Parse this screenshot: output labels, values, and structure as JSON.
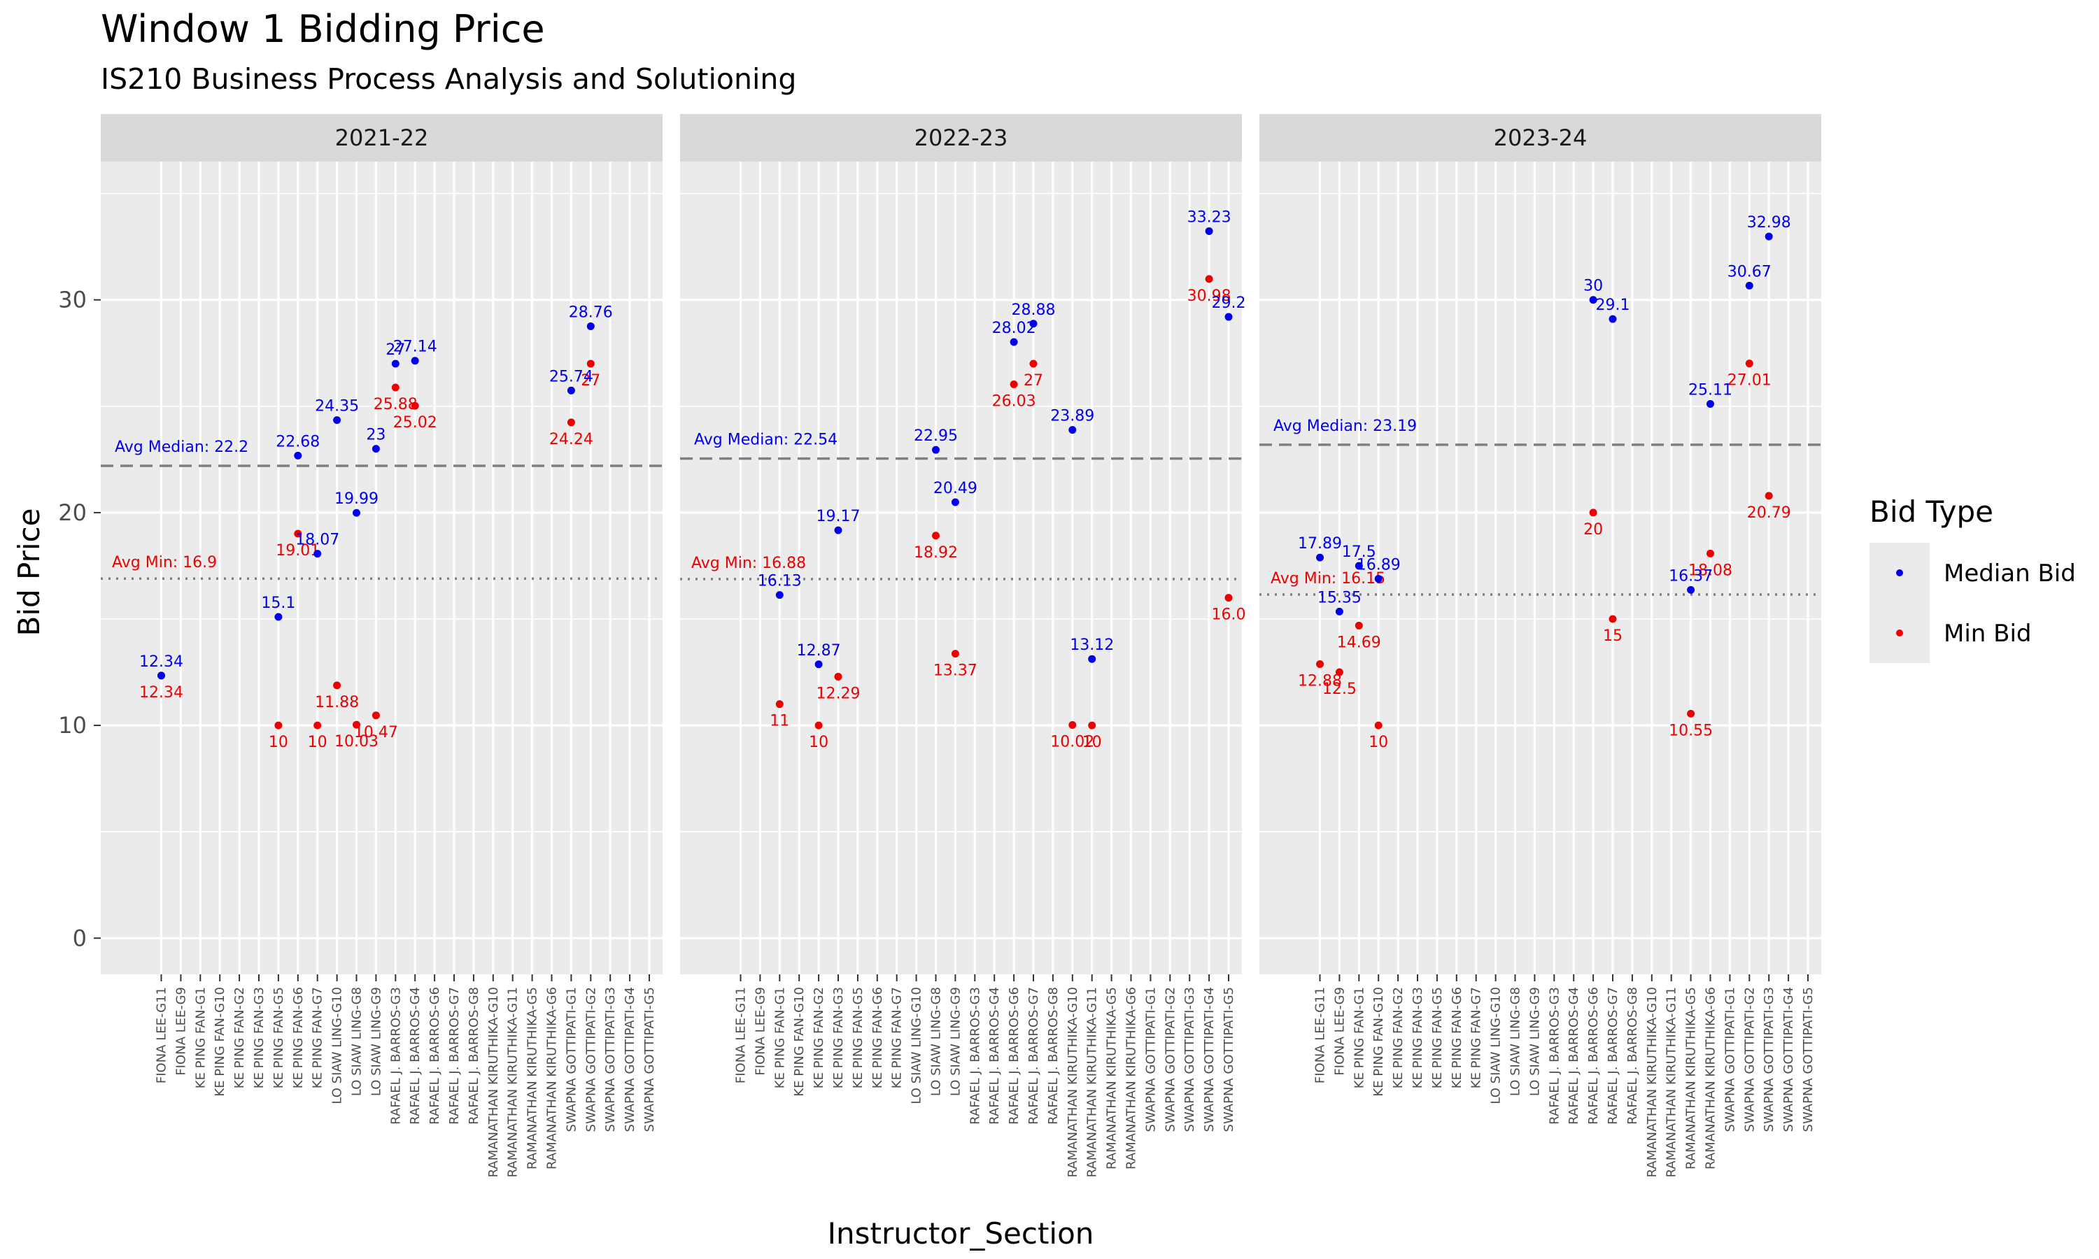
{
  "chart_data": {
    "type": "scatter",
    "title": "Window 1 Bidding Price",
    "subtitle": "IS210 Business Process Analysis and Solutioning",
    "xlabel": "Instructor_Section",
    "ylabel": "Bid Price",
    "ylim": [
      -1.7,
      36.5
    ],
    "yticks": [
      0,
      10,
      20,
      30
    ],
    "grid": true,
    "categories": [
      "FIONA LEE-G11",
      "FIONA LEE-G9",
      "KE PING FAN-G1",
      "KE PING FAN-G10",
      "KE PING FAN-G2",
      "KE PING FAN-G3",
      "KE PING FAN-G5",
      "KE PING FAN-G6",
      "KE PING FAN-G7",
      "LO SIAW LING-G10",
      "LO SIAW LING-G8",
      "LO SIAW LING-G9",
      "RAFAEL J. BARROS-G3",
      "RAFAEL J. BARROS-G4",
      "RAFAEL J. BARROS-G6",
      "RAFAEL J. BARROS-G7",
      "RAFAEL J. BARROS-G8",
      "RAMANATHAN KIRUTHIKA-G10",
      "RAMANATHAN KIRUTHIKA-G11",
      "RAMANATHAN KIRUTHIKA-G5",
      "RAMANATHAN KIRUTHIKA-G6",
      "SWAPNA GOTTIPATI-G1",
      "SWAPNA GOTTIPATI-G2",
      "SWAPNA GOTTIPATI-G3",
      "SWAPNA GOTTIPATI-G4",
      "SWAPNA GOTTIPATI-G5"
    ],
    "legend": {
      "title": "Bid Type",
      "position": "right",
      "entries": [
        {
          "name": "Median Bid",
          "color": "#0000ee"
        },
        {
          "name": "Min Bid",
          "color": "#ee0000"
        }
      ]
    },
    "colors": {
      "median": "#0000ee",
      "min": "#ee0000"
    },
    "panels": [
      {
        "name": "2021-22",
        "avg_median": {
          "value": 22.2,
          "label": "Avg Median: 22.2"
        },
        "avg_min": {
          "value": 16.9,
          "label": "Avg Min: 16.9"
        },
        "median": [
          {
            "x": "FIONA LEE-G11",
            "y": 12.34,
            "label": "12.34"
          },
          {
            "x": "KE PING FAN-G5",
            "y": 15.1,
            "label": "15.1"
          },
          {
            "x": "KE PING FAN-G6",
            "y": 22.68,
            "label": "22.68"
          },
          {
            "x": "KE PING FAN-G7",
            "y": 18.07,
            "label": "18.07"
          },
          {
            "x": "LO SIAW LING-G10",
            "y": 24.35,
            "label": "24.35"
          },
          {
            "x": "LO SIAW LING-G8",
            "y": 19.99,
            "label": "19.99"
          },
          {
            "x": "LO SIAW LING-G9",
            "y": 23.0,
            "label": "23"
          },
          {
            "x": "RAFAEL J. BARROS-G3",
            "y": 27.0,
            "label": "27"
          },
          {
            "x": "RAFAEL J. BARROS-G4",
            "y": 27.14,
            "label": "27.14"
          },
          {
            "x": "SWAPNA GOTTIPATI-G1",
            "y": 25.74,
            "label": "25.74"
          },
          {
            "x": "SWAPNA GOTTIPATI-G2",
            "y": 28.76,
            "label": "28.76"
          }
        ],
        "min": [
          {
            "x": "FIONA LEE-G11",
            "y": 12.34,
            "label": "12.34"
          },
          {
            "x": "KE PING FAN-G5",
            "y": 10.0,
            "label": "10"
          },
          {
            "x": "KE PING FAN-G6",
            "y": 19.01,
            "label": "19.01"
          },
          {
            "x": "KE PING FAN-G7",
            "y": 10.0,
            "label": "10"
          },
          {
            "x": "LO SIAW LING-G10",
            "y": 11.88,
            "label": "11.88"
          },
          {
            "x": "LO SIAW LING-G8",
            "y": 10.03,
            "label": "10.03"
          },
          {
            "x": "LO SIAW LING-G9",
            "y": 10.47,
            "label": "10.47"
          },
          {
            "x": "RAFAEL J. BARROS-G3",
            "y": 25.88,
            "label": "25.88"
          },
          {
            "x": "RAFAEL J. BARROS-G4",
            "y": 25.02,
            "label": "25.02"
          },
          {
            "x": "SWAPNA GOTTIPATI-G1",
            "y": 24.24,
            "label": "24.24"
          },
          {
            "x": "SWAPNA GOTTIPATI-G2",
            "y": 27.0,
            "label": "27"
          }
        ]
      },
      {
        "name": "2022-23",
        "avg_median": {
          "value": 22.54,
          "label": "Avg Median: 22.54"
        },
        "avg_min": {
          "value": 16.88,
          "label": "Avg Min: 16.88"
        },
        "median": [
          {
            "x": "KE PING FAN-G1",
            "y": 16.13,
            "label": "16.13"
          },
          {
            "x": "KE PING FAN-G2",
            "y": 12.87,
            "label": "12.87"
          },
          {
            "x": "KE PING FAN-G3",
            "y": 19.17,
            "label": "19.17"
          },
          {
            "x": "LO SIAW LING-G8",
            "y": 22.95,
            "label": "22.95"
          },
          {
            "x": "LO SIAW LING-G9",
            "y": 20.49,
            "label": "20.49"
          },
          {
            "x": "RAFAEL J. BARROS-G6",
            "y": 28.02,
            "label": "28.02"
          },
          {
            "x": "RAFAEL J. BARROS-G7",
            "y": 28.88,
            "label": "28.88"
          },
          {
            "x": "RAMANATHAN KIRUTHIKA-G10",
            "y": 23.89,
            "label": "23.89"
          },
          {
            "x": "RAMANATHAN KIRUTHIKA-G11",
            "y": 13.12,
            "label": "13.12"
          },
          {
            "x": "SWAPNA GOTTIPATI-G4",
            "y": 33.23,
            "label": "33.23"
          },
          {
            "x": "SWAPNA GOTTIPATI-G5",
            "y": 29.2,
            "label": "29.2"
          }
        ],
        "min": [
          {
            "x": "KE PING FAN-G1",
            "y": 11.0,
            "label": "11"
          },
          {
            "x": "KE PING FAN-G2",
            "y": 10.0,
            "label": "10"
          },
          {
            "x": "KE PING FAN-G3",
            "y": 12.29,
            "label": "12.29"
          },
          {
            "x": "LO SIAW LING-G8",
            "y": 18.92,
            "label": "18.92"
          },
          {
            "x": "LO SIAW LING-G9",
            "y": 13.37,
            "label": "13.37"
          },
          {
            "x": "RAFAEL J. BARROS-G6",
            "y": 26.03,
            "label": "26.03"
          },
          {
            "x": "RAFAEL J. BARROS-G7",
            "y": 27.0,
            "label": "27"
          },
          {
            "x": "RAMANATHAN KIRUTHIKA-G10",
            "y": 10.02,
            "label": "10.02"
          },
          {
            "x": "RAMANATHAN KIRUTHIKA-G11",
            "y": 10.0,
            "label": "10"
          },
          {
            "x": "SWAPNA GOTTIPATI-G4",
            "y": 30.98,
            "label": "30.98"
          },
          {
            "x": "SWAPNA GOTTIPATI-G5",
            "y": 16.0,
            "label": "16.0"
          }
        ]
      },
      {
        "name": "2023-24",
        "avg_median": {
          "value": 23.19,
          "label": "Avg Median: 23.19"
        },
        "avg_min": {
          "value": 16.15,
          "label": "Avg Min: 16.15"
        },
        "median": [
          {
            "x": "FIONA LEE-G11",
            "y": 17.89,
            "label": "17.89"
          },
          {
            "x": "FIONA LEE-G9",
            "y": 15.35,
            "label": "15.35"
          },
          {
            "x": "KE PING FAN-G1",
            "y": 17.5,
            "label": "17.5"
          },
          {
            "x": "KE PING FAN-G10",
            "y": 16.89,
            "label": "16.89"
          },
          {
            "x": "RAFAEL J. BARROS-G6",
            "y": 30.0,
            "label": "30"
          },
          {
            "x": "RAFAEL J. BARROS-G7",
            "y": 29.1,
            "label": "29.1"
          },
          {
            "x": "RAMANATHAN KIRUTHIKA-G5",
            "y": 16.37,
            "label": "16.37"
          },
          {
            "x": "RAMANATHAN KIRUTHIKA-G6",
            "y": 25.11,
            "label": "25.11"
          },
          {
            "x": "SWAPNA GOTTIPATI-G2",
            "y": 30.67,
            "label": "30.67"
          },
          {
            "x": "SWAPNA GOTTIPATI-G3",
            "y": 32.98,
            "label": "32.98"
          }
        ],
        "min": [
          {
            "x": "FIONA LEE-G11",
            "y": 12.88,
            "label": "12.88"
          },
          {
            "x": "FIONA LEE-G9",
            "y": 12.5,
            "label": "12.5"
          },
          {
            "x": "KE PING FAN-G1",
            "y": 14.69,
            "label": "14.69"
          },
          {
            "x": "KE PING FAN-G10",
            "y": 10.0,
            "label": "10"
          },
          {
            "x": "RAFAEL J. BARROS-G6",
            "y": 20.0,
            "label": "20"
          },
          {
            "x": "RAFAEL J. BARROS-G7",
            "y": 15.0,
            "label": "15"
          },
          {
            "x": "RAMANATHAN KIRUTHIKA-G5",
            "y": 10.55,
            "label": "10.55"
          },
          {
            "x": "RAMANATHAN KIRUTHIKA-G6",
            "y": 18.08,
            "label": "18.08"
          },
          {
            "x": "SWAPNA GOTTIPATI-G2",
            "y": 27.01,
            "label": "27.01"
          },
          {
            "x": "SWAPNA GOTTIPATI-G3",
            "y": 20.79,
            "label": "20.79"
          }
        ]
      }
    ]
  }
}
